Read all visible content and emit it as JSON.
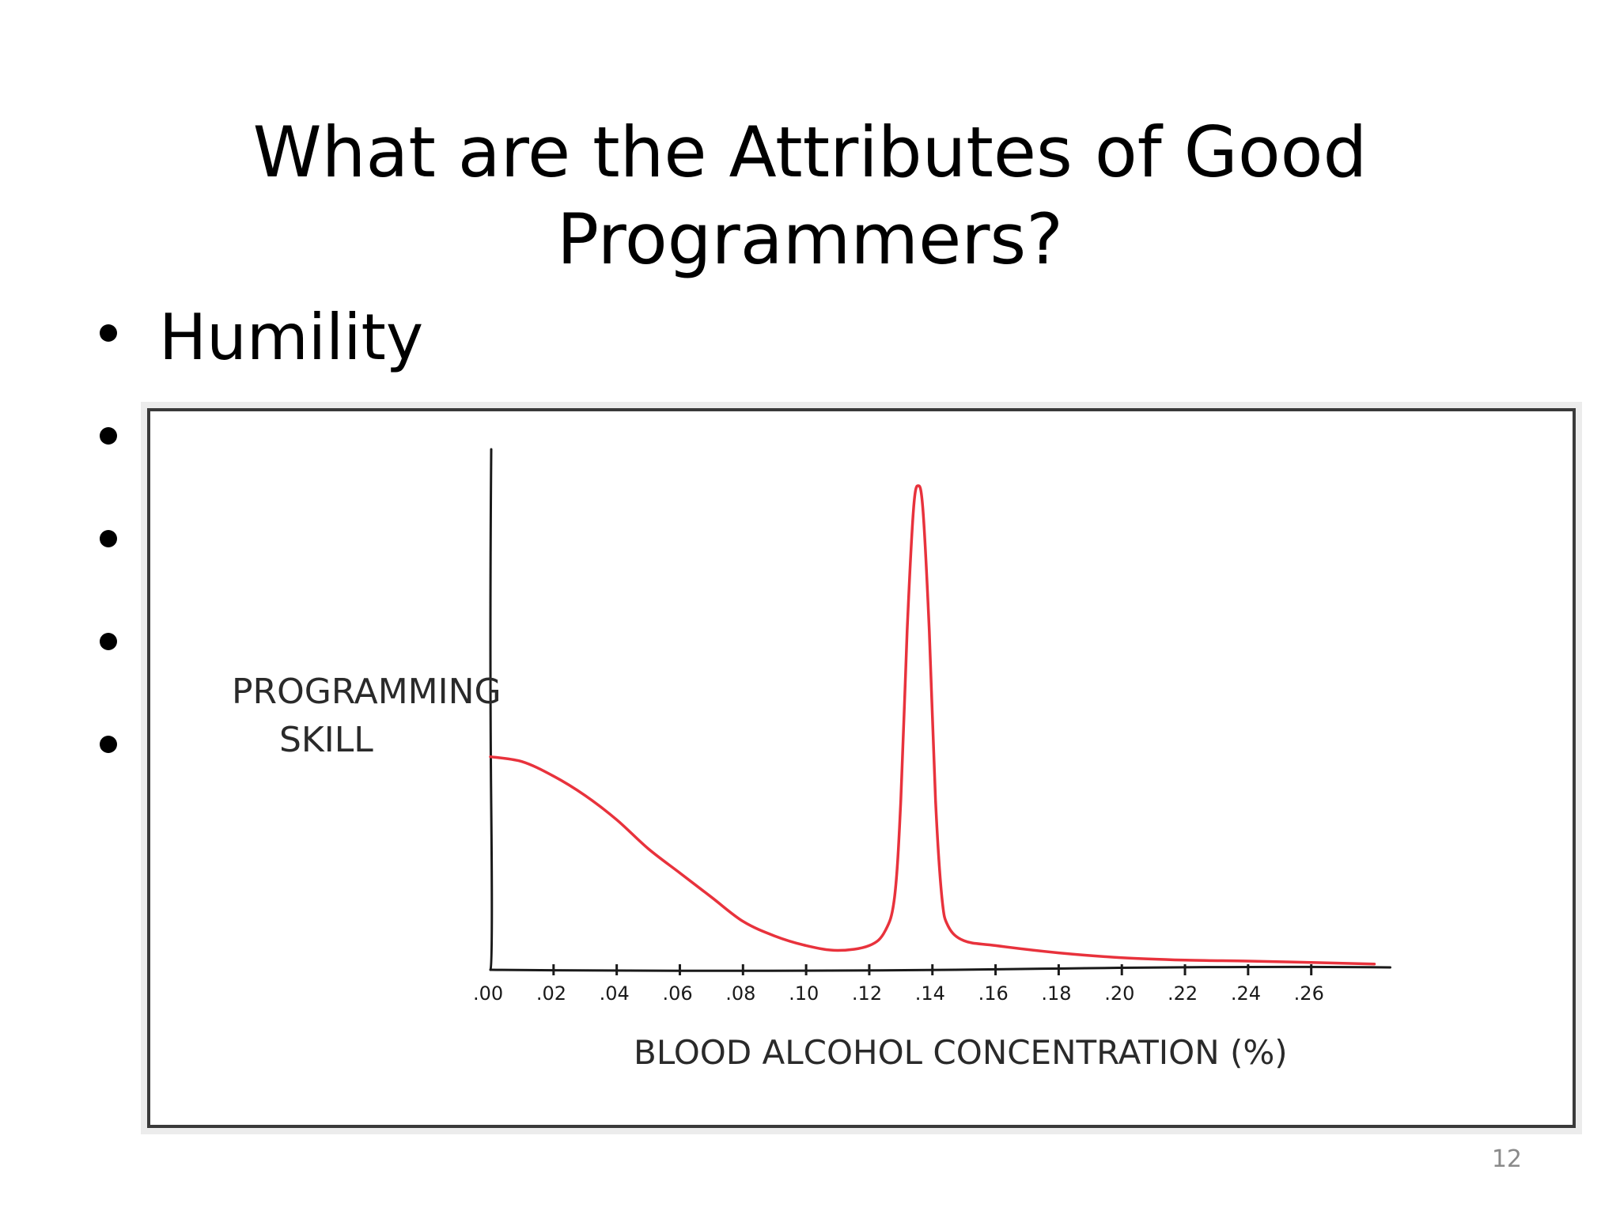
{
  "slide": {
    "title": "What are the Attributes of Good Programmers?",
    "bullets": [
      {
        "text": "Humility"
      },
      {
        "text": ""
      },
      {
        "text": ""
      },
      {
        "text": ""
      },
      {
        "text": ""
      }
    ],
    "page_number": "12"
  },
  "chart_data": {
    "type": "line",
    "title": "",
    "xlabel": "BLOOD ALCOHOL CONCENTRATION (%)",
    "ylabel": "PROGRAMMING SKILL",
    "ylabel_lines": [
      "PROGRAMMING",
      "SKILL"
    ],
    "x_ticks": [
      ".00",
      ".02",
      ".04",
      ".06",
      ".08",
      ".10",
      ".12",
      ".14",
      ".16",
      ".18",
      ".20",
      ".22",
      ".24",
      ".26"
    ],
    "xlim": [
      0.0,
      0.28
    ],
    "ylim": [
      0,
      100
    ],
    "y_ticks_shown": false,
    "grid": false,
    "series": [
      {
        "color": "#e8323c",
        "x": [
          0.0,
          0.01,
          0.02,
          0.03,
          0.04,
          0.05,
          0.06,
          0.07,
          0.08,
          0.09,
          0.1,
          0.11,
          0.12,
          0.125,
          0.128,
          0.13,
          0.132,
          0.134,
          0.1355,
          0.137,
          0.139,
          0.141,
          0.143,
          0.145,
          0.15,
          0.16,
          0.18,
          0.2,
          0.22,
          0.24,
          0.26,
          0.28
        ],
        "y": [
          44,
          43,
          40,
          36,
          31,
          25,
          20,
          15,
          10,
          7,
          5,
          4,
          5,
          8,
          15,
          35,
          70,
          95,
          100,
          95,
          70,
          35,
          15,
          9,
          6,
          5,
          3.5,
          2.5,
          2,
          1.8,
          1.5,
          1.2
        ]
      }
    ]
  }
}
